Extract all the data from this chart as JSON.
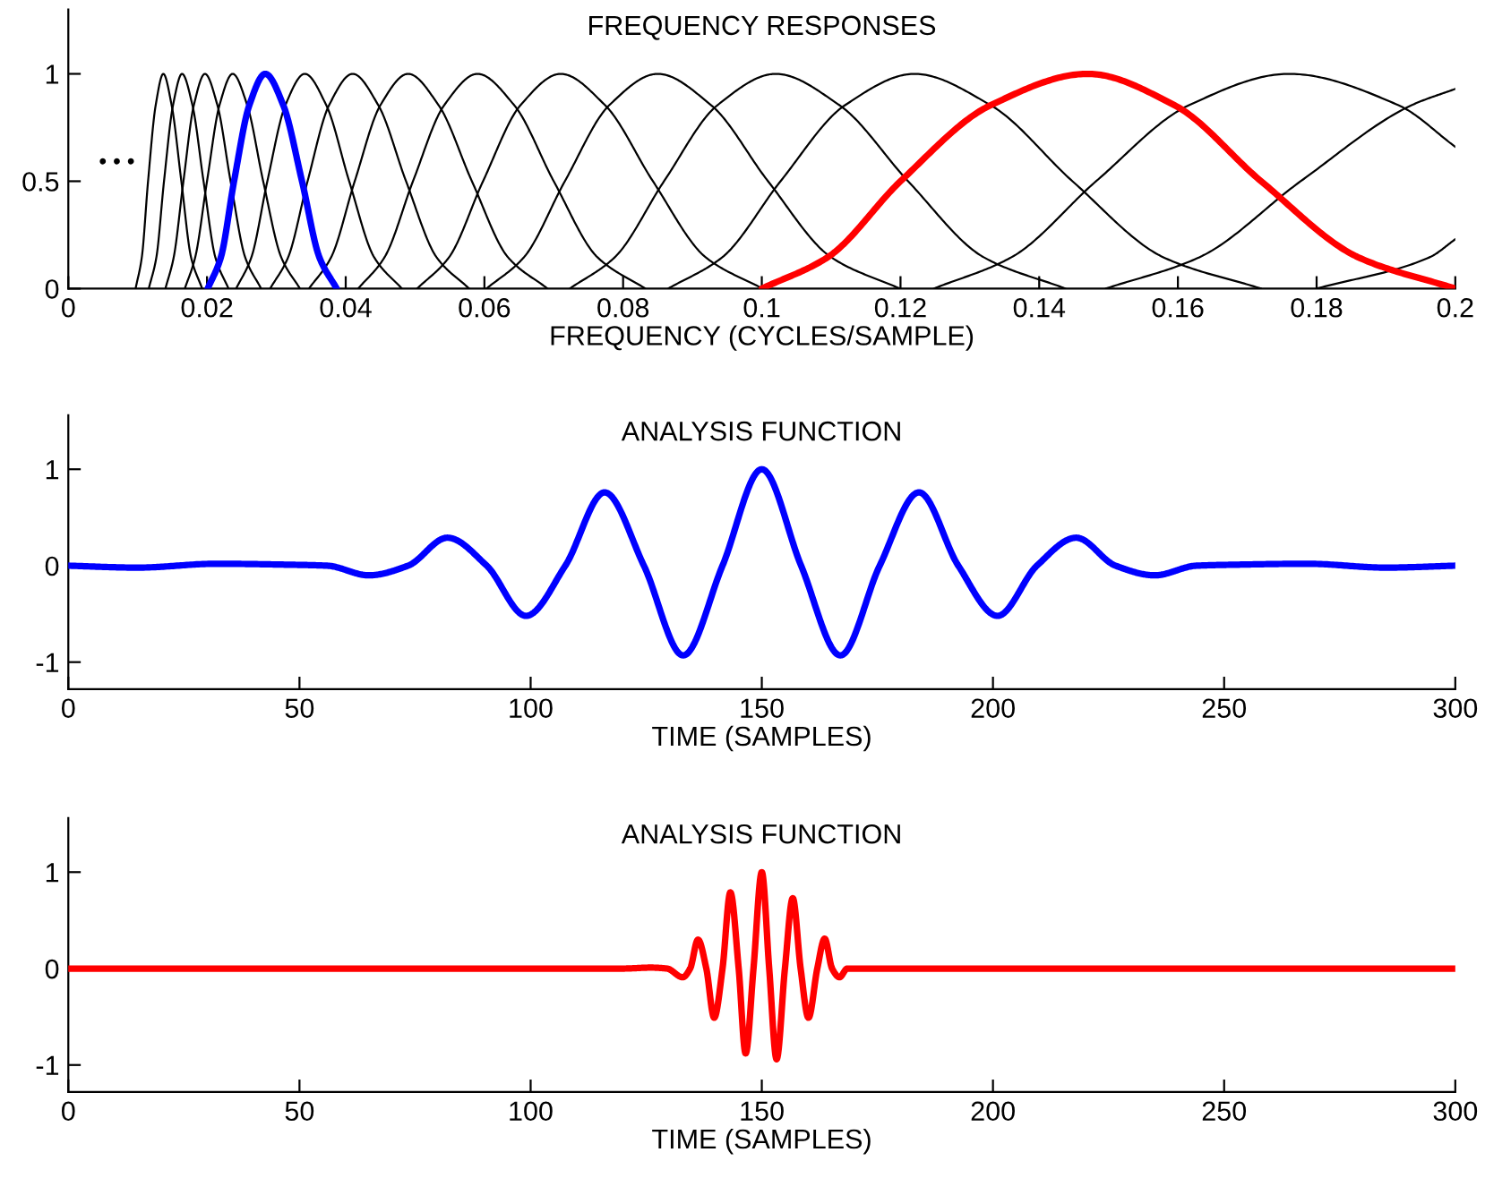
{
  "chart_data": [
    {
      "type": "line",
      "title": "FREQUENCY RESPONSES",
      "xlabel": "FREQUENCY (CYCLES/SAMPLE)",
      "xlim": [
        0,
        0.2
      ],
      "ylim": [
        0,
        1.3
      ],
      "xticks": [
        0,
        0.02,
        0.04,
        0.06,
        0.08,
        0.1,
        0.12,
        0.14,
        0.16,
        0.18,
        0.2
      ],
      "yticks": [
        0,
        0.5,
        1
      ],
      "grid": false,
      "legend": false,
      "annotations": [
        "• • •"
      ],
      "series": [
        {
          "color": "#000000",
          "x": [
            0.0097,
            0.0106,
            0.0115,
            0.0126,
            0.0137,
            0.0149,
            0.0163,
            0.0177,
            0.0193
          ],
          "values": [
            0,
            0.146,
            0.5,
            0.854,
            1,
            0.854,
            0.5,
            0.146,
            0
          ]
        },
        {
          "color": "#000000",
          "x": [
            0.0116,
            0.0127,
            0.0138,
            0.0151,
            0.0164,
            0.0179,
            0.0195,
            0.0212,
            0.0231
          ],
          "values": [
            0,
            0.146,
            0.5,
            0.854,
            1,
            0.854,
            0.5,
            0.146,
            0
          ]
        },
        {
          "color": "#000000",
          "x": [
            0.014,
            0.0152,
            0.0166,
            0.0181,
            0.0197,
            0.0215,
            0.0234,
            0.0255,
            0.0278
          ],
          "values": [
            0,
            0.146,
            0.5,
            0.854,
            1,
            0.854,
            0.5,
            0.146,
            0
          ]
        },
        {
          "color": "#000000",
          "x": [
            0.0168,
            0.0183,
            0.02,
            0.0218,
            0.0237,
            0.0258,
            0.0281,
            0.0307,
            0.0334
          ],
          "values": [
            0,
            0.146,
            0.5,
            0.854,
            1,
            0.854,
            0.5,
            0.146,
            0
          ]
        },
        {
          "color": "#000000",
          "x": [
            0.0242,
            0.0264,
            0.0287,
            0.0313,
            0.0341,
            0.0372,
            0.0405,
            0.0441,
            0.0481
          ],
          "values": [
            0,
            0.146,
            0.5,
            0.854,
            1,
            0.854,
            0.5,
            0.146,
            0
          ]
        },
        {
          "color": "#000000",
          "x": [
            0.0291,
            0.0317,
            0.0345,
            0.0376,
            0.041,
            0.0447,
            0.0487,
            0.0531,
            0.0578
          ],
          "values": [
            0,
            0.146,
            0.5,
            0.854,
            1,
            0.854,
            0.5,
            0.146,
            0
          ]
        },
        {
          "color": "#000000",
          "x": [
            0.0347,
            0.0379,
            0.0413,
            0.045,
            0.049,
            0.0534,
            0.0582,
            0.0634,
            0.0691
          ],
          "values": [
            0,
            0.146,
            0.5,
            0.854,
            1,
            0.854,
            0.5,
            0.146,
            0
          ]
        },
        {
          "color": "#000000",
          "x": [
            0.0418,
            0.0456,
            0.0497,
            0.0542,
            0.059,
            0.0643,
            0.07,
            0.0763,
            0.0832
          ],
          "values": [
            0,
            0.146,
            0.5,
            0.854,
            1,
            0.854,
            0.5,
            0.146,
            0
          ]
        },
        {
          "color": "#000000",
          "x": [
            0.0503,
            0.0549,
            0.0598,
            0.0652,
            0.071,
            0.0774,
            0.0843,
            0.0919,
            0.1001
          ],
          "values": [
            0,
            0.146,
            0.5,
            0.854,
            1,
            0.854,
            0.5,
            0.146,
            0
          ]
        },
        {
          "color": "#000000",
          "x": [
            0.0603,
            0.0657,
            0.0716,
            0.078,
            0.085,
            0.0927,
            0.1009,
            0.11,
            0.1199
          ],
          "values": [
            0,
            0.146,
            0.5,
            0.854,
            1,
            0.854,
            0.5,
            0.146,
            0
          ]
        },
        {
          "color": "#000000",
          "x": [
            0.0723,
            0.0788,
            0.0859,
            0.0936,
            0.102,
            0.1112,
            0.1211,
            0.132,
            0.1438
          ],
          "values": [
            0,
            0.146,
            0.5,
            0.854,
            1,
            0.854,
            0.5,
            0.146,
            0
          ]
        },
        {
          "color": "#000000",
          "x": [
            0.0865,
            0.0943,
            0.1027,
            0.112,
            0.122,
            0.133,
            0.1448,
            0.1579,
            0.172
          ],
          "values": [
            0,
            0.146,
            0.5,
            0.854,
            1,
            0.854,
            0.5,
            0.146,
            0
          ]
        },
        {
          "color": "#000000",
          "x": [
            0.1248,
            0.136,
            0.1482,
            0.1616,
            0.176,
            0.1918,
            0.2
          ],
          "values": [
            0,
            0.146,
            0.5,
            0.854,
            1,
            0.854,
            0.66
          ]
        },
        {
          "color": "#000000",
          "x": [
            0.1496,
            0.1631,
            0.1777,
            0.1937,
            0.2
          ],
          "values": [
            0,
            0.146,
            0.5,
            0.854,
            0.93
          ]
        },
        {
          "color": "#000000",
          "x": [
            0.18,
            0.1963,
            0.2
          ],
          "values": [
            0,
            0.146,
            0.23
          ]
        },
        {
          "color": "#0000ff",
          "x": [
            0.0201,
            0.022,
            0.0239,
            0.0261,
            0.0284,
            0.031,
            0.0337,
            0.0362,
            0.0387
          ],
          "values": [
            0,
            0.146,
            0.5,
            0.854,
            1,
            0.854,
            0.5,
            0.146,
            0
          ]
        },
        {
          "color": "#ff0000",
          "x": [
            0.1,
            0.1095,
            0.12,
            0.133,
            0.147,
            0.1595,
            0.172,
            0.186,
            0.2
          ],
          "values": [
            0,
            0.146,
            0.5,
            0.854,
            1,
            0.854,
            0.5,
            0.146,
            0
          ]
        }
      ]
    },
    {
      "type": "line",
      "title": "ANALYSIS FUNCTION",
      "xlabel": "TIME (SAMPLES)",
      "xlim": [
        0,
        300
      ],
      "ylim": [
        -1.28,
        1.56
      ],
      "xticks": [
        0,
        50,
        100,
        150,
        200,
        250,
        300
      ],
      "yticks": [
        -1,
        0,
        1
      ],
      "grid": false,
      "legend": false,
      "series": [
        {
          "color": "#0000ff",
          "x": [
            0,
            15,
            32,
            48,
            56,
            65,
            73.5,
            82,
            90.5,
            99,
            107.5,
            116,
            124.5,
            133,
            141.5,
            150,
            158.5,
            167,
            175.5,
            184,
            192.5,
            201,
            209.5,
            218,
            226.5,
            235,
            244,
            252,
            268,
            285,
            300
          ],
          "values": [
            0,
            -0.02,
            0.02,
            0.01,
            0,
            -0.1,
            0,
            0.29,
            0,
            -0.52,
            0,
            0.76,
            0,
            -0.93,
            0,
            1,
            0,
            -0.93,
            0,
            0.76,
            0,
            -0.52,
            0,
            0.29,
            0,
            -0.1,
            0,
            0.01,
            0.02,
            -0.02,
            0
          ]
        }
      ]
    },
    {
      "type": "line",
      "title": "ANALYSIS FUNCTION",
      "xlabel": "TIME (SAMPLES)",
      "xlim": [
        0,
        300
      ],
      "ylim": [
        -1.28,
        1.56
      ],
      "xticks": [
        0,
        50,
        100,
        150,
        200,
        250,
        300
      ],
      "yticks": [
        -1,
        0,
        1
      ],
      "grid": false,
      "legend": false,
      "series": [
        {
          "color": "#ff0000",
          "x": [
            0,
            120,
            126,
            129.5,
            132.9,
            134.5,
            136.2,
            138,
            139.7,
            141.5,
            143.2,
            145,
            146.5,
            148.2,
            150,
            151.6,
            153.2,
            155,
            156.7,
            158.4,
            160.1,
            162,
            163.6,
            165.2,
            166.8,
            168.5,
            180,
            300
          ],
          "values": [
            0,
            0,
            0.01,
            0,
            -0.09,
            0,
            0.3,
            0,
            -0.51,
            0,
            0.79,
            0,
            -0.88,
            0,
            1,
            0,
            -0.94,
            0,
            0.73,
            0,
            -0.51,
            0,
            0.31,
            0,
            -0.09,
            0,
            0,
            0
          ]
        }
      ]
    }
  ]
}
